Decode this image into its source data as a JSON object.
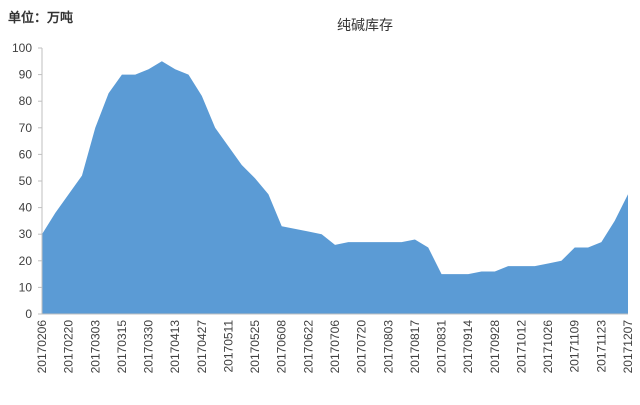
{
  "chart_data": {
    "type": "area",
    "title": "纯碱库存",
    "unit_label": "单位：万吨",
    "categories": [
      "20170206",
      null,
      "20170220",
      null,
      "20170303",
      null,
      "20170315",
      null,
      "20170330",
      null,
      "20170413",
      null,
      "20170427",
      null,
      "20170511",
      null,
      "20170525",
      null,
      "20170608",
      null,
      "20170622",
      null,
      "20170706",
      null,
      "20170720",
      null,
      "20170803",
      null,
      "20170817",
      null,
      "20170831",
      null,
      "20170914",
      null,
      "20170928",
      null,
      "20171012",
      null,
      "20171026",
      null,
      "20171109",
      null,
      "20171123",
      null,
      "20171207"
    ],
    "values": [
      30,
      38,
      45,
      52,
      70,
      83,
      90,
      90,
      92,
      95,
      92,
      90,
      82,
      70,
      63,
      56,
      51,
      45,
      33,
      32,
      31,
      30,
      26,
      27,
      27,
      27,
      27,
      27,
      28,
      25,
      15,
      15,
      15,
      16,
      16,
      18,
      18,
      18,
      19,
      20,
      25,
      25,
      27,
      35,
      45
    ],
    "color": "#5b9bd5",
    "ylim": [
      0,
      100
    ],
    "yticks": [
      0,
      10,
      20,
      30,
      40,
      50,
      60,
      70,
      80,
      90,
      100
    ],
    "grid": false
  }
}
